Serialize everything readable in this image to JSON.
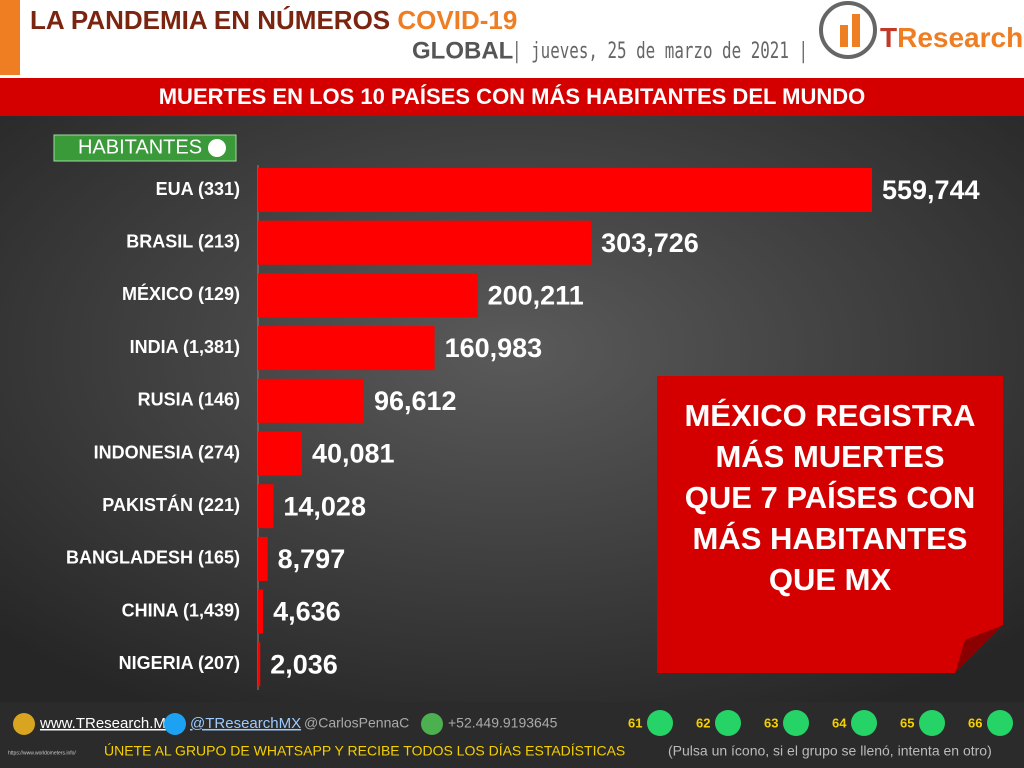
{
  "header": {
    "title": "LA PANDEMIA EN NÚMEROS",
    "highlight": "COVID-19",
    "scope": "GLOBAL",
    "date": "| jueves, 25 de marzo de 2021 |",
    "logo": [
      "T",
      "Research"
    ]
  },
  "chart_data": {
    "type": "bar",
    "orientation": "horizontal",
    "title": "MUERTES EN LOS 10 PAÍSES CON MÁS HABITANTES DEL MUNDO",
    "badge": "HABITANTES",
    "categories": [
      "EUA (331)",
      "BRASIL (213)",
      "MÉXICO (129)",
      "INDIA (1,381)",
      "RUSIA (146)",
      "INDONESIA (274)",
      "PAKISTÁN (221)",
      "BANGLADESH (165)",
      "CHINA (1,439)",
      "NIGERIA (207)"
    ],
    "values": [
      559744,
      303726,
      200211,
      160983,
      96612,
      40081,
      14028,
      8797,
      4636,
      2036
    ],
    "value_labels": [
      "559,744",
      "303,726",
      "200,211",
      "160,983",
      "96,612",
      "40,081",
      "14,028",
      "8,797",
      "4,636",
      "2,036"
    ],
    "color": "#ff0000"
  },
  "callout": {
    "lines": [
      "MÉXICO REGISTRA",
      "MÁS MUERTES",
      "QUE 7 PAÍSES CON",
      "MÁS HABITANTES",
      "QUE MX"
    ]
  },
  "footer": {
    "web": "www.TResearch.Mx",
    "twitter": "@TResearchMX",
    "personal": "@CarlosPennaC",
    "phone": "+52.449.9193645",
    "groups": [
      "61",
      "62",
      "63",
      "64",
      "65",
      "66"
    ],
    "source": "https://www.worldometers.info/",
    "invite": "ÚNETE AL GRUPO DE WHATSAPP Y RECIBE TODOS LOS DÍAS ESTADÍSTICAS",
    "note": "(Pulsa un ícono, si el grupo se llenó, intenta en otro)"
  }
}
